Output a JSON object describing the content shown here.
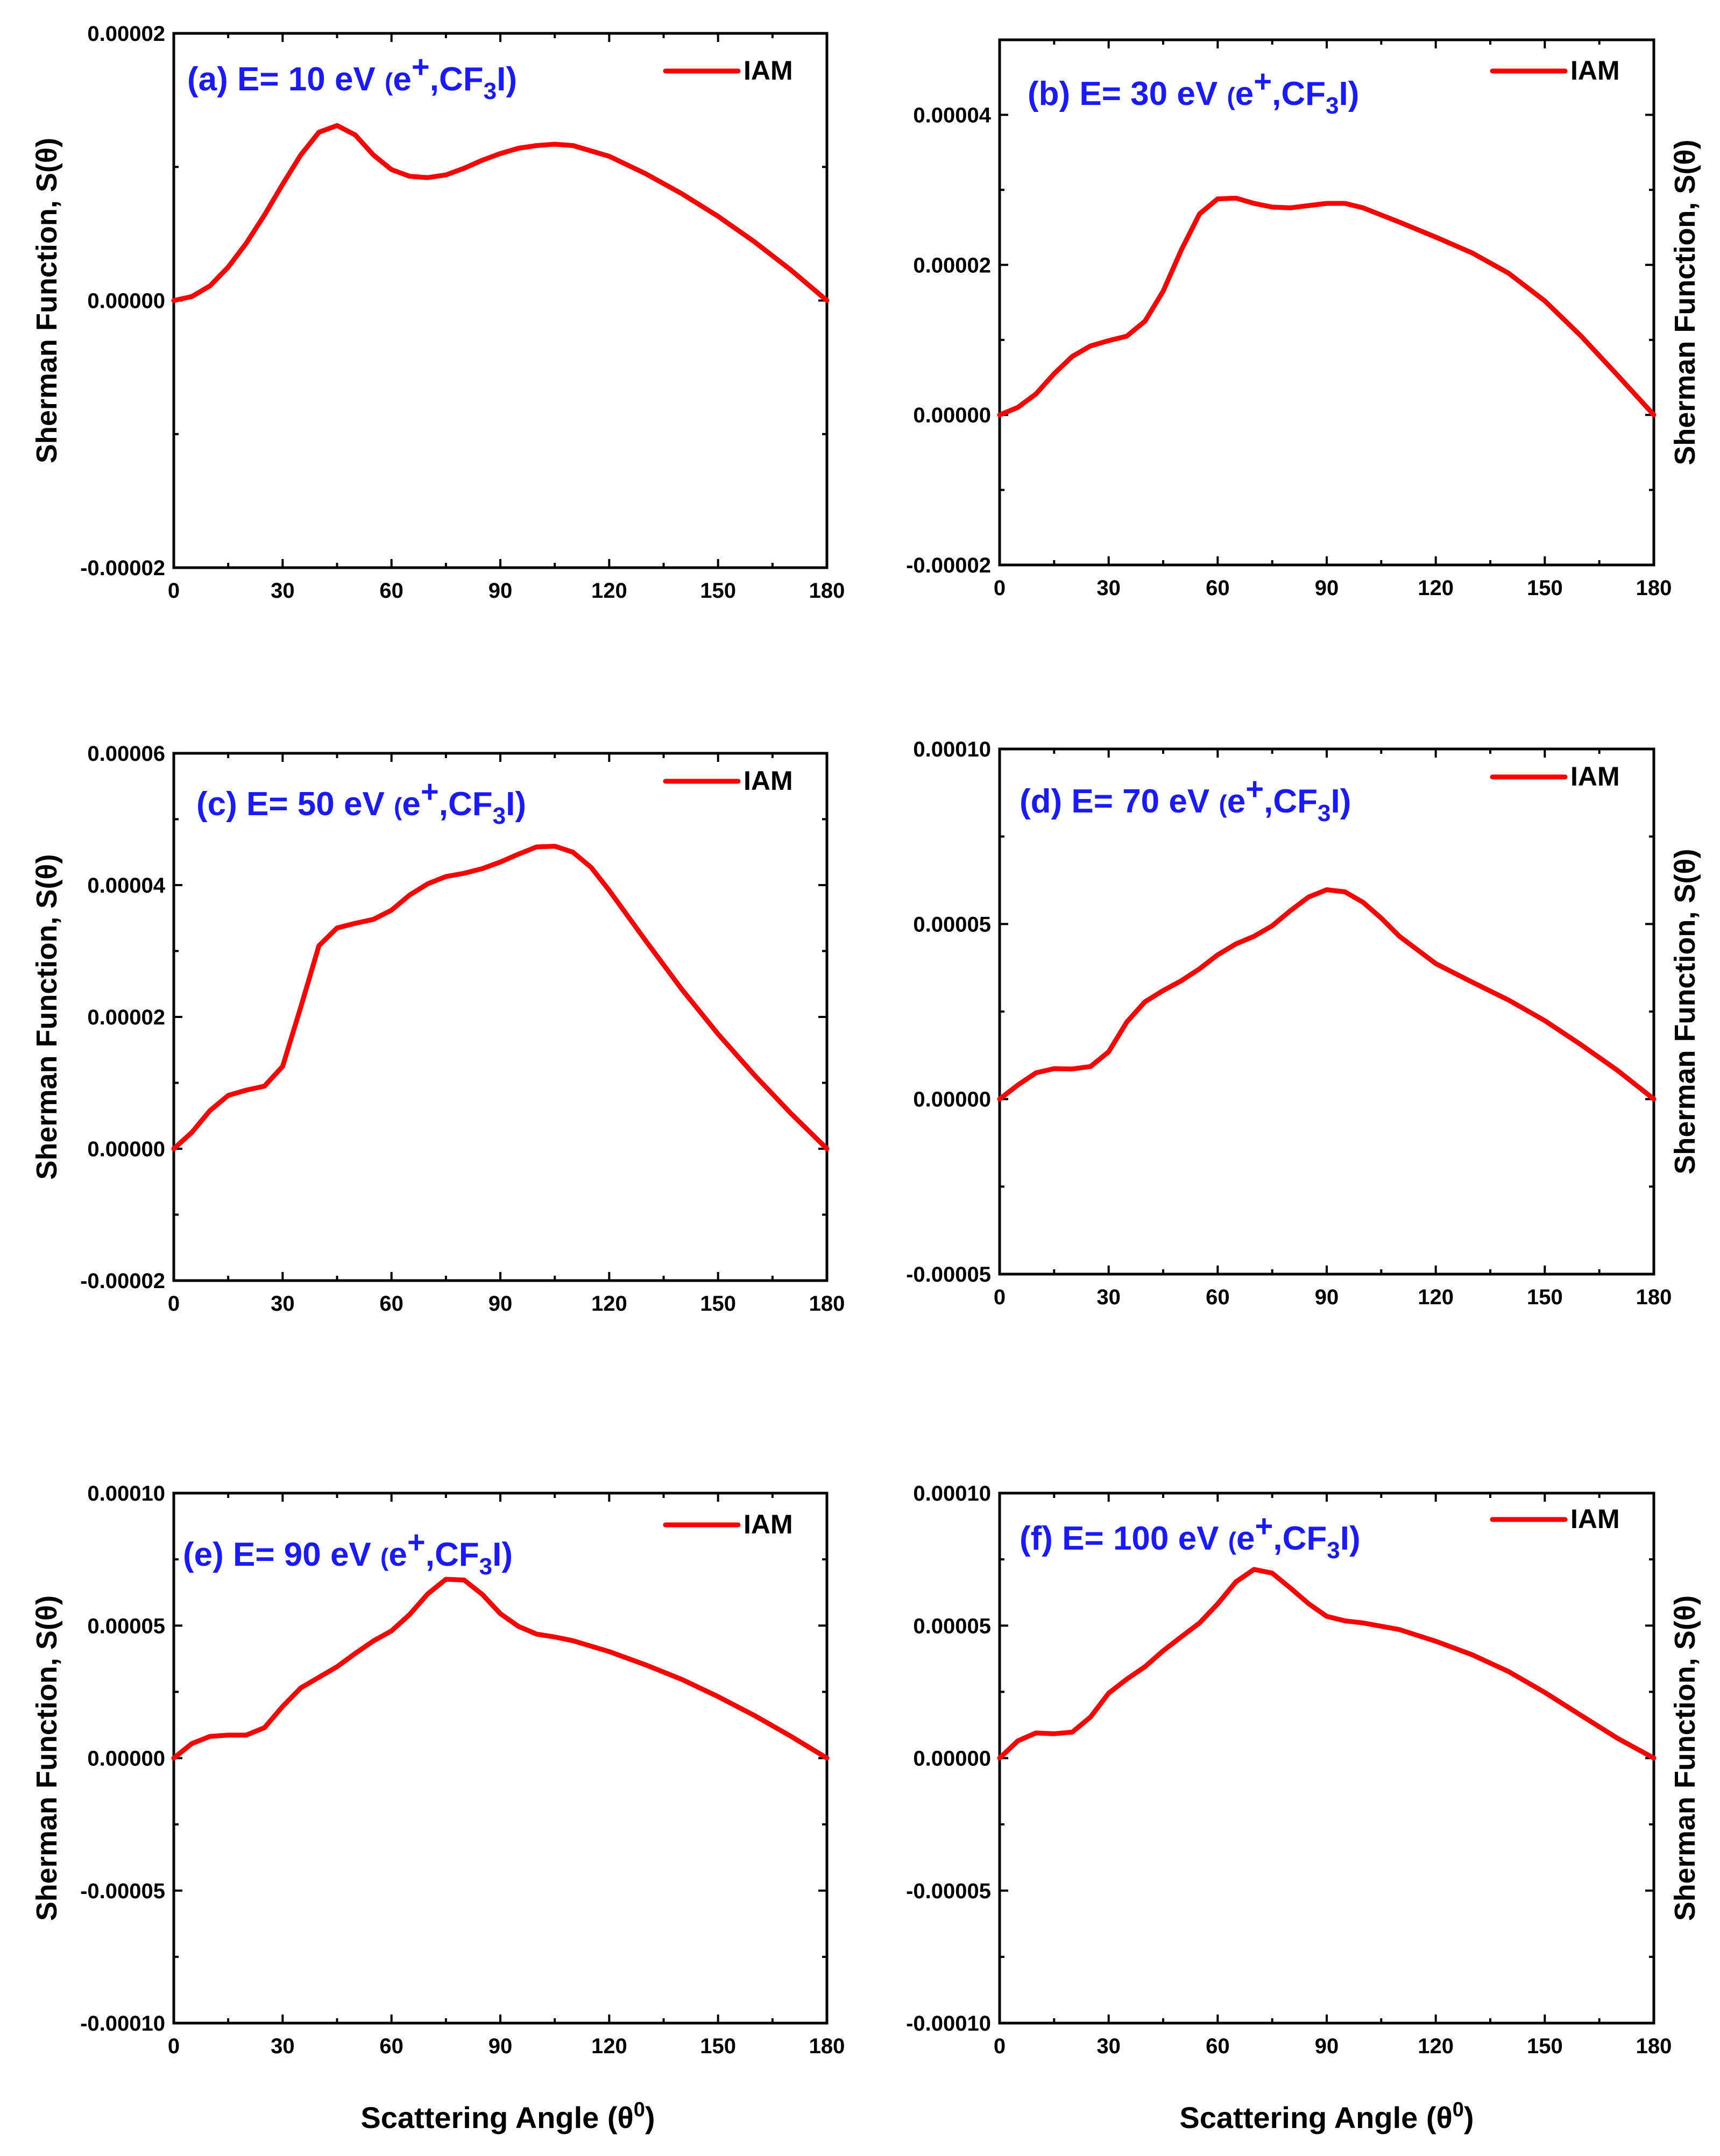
{
  "figure": {
    "xlabel_text": "Scattering Angle (θ",
    "xlabel_sup": "0",
    "xlabel_close": ")",
    "ylabel": "Sherman Function, S(θ)"
  },
  "chart_data": [
    {
      "type": "line",
      "panel": "a",
      "title": "(a) E= 10 eV (e+,CF3I)",
      "title_label": "(a) E= 10 eV ",
      "title_paren": "(",
      "title_e": "e",
      "title_sup": "+",
      "title_mid": ",CF",
      "title_sub": "3",
      "title_end": "I)",
      "legend": "IAM",
      "xlabel": "Scattering Angle (θ0)",
      "ylabel": "Sherman Function, S(θ)",
      "xlim": [
        0,
        180
      ],
      "ylim": [
        -2e-05,
        2e-05
      ],
      "xticks": [
        0,
        30,
        60,
        90,
        120,
        150,
        180
      ],
      "xtick_labels": [
        "0",
        "30",
        "60",
        "90",
        "120",
        "150",
        "180"
      ],
      "yticks": [
        -2e-05,
        0,
        2e-05
      ],
      "ytick_labels": [
        "-0.00002",
        "0.00000",
        "0.00002"
      ],
      "series": [
        {
          "name": "IAM",
          "color": "#ff0000",
          "x": [
            0,
            5,
            10,
            15,
            20,
            25,
            30,
            35,
            40,
            45,
            50,
            55,
            60,
            65,
            70,
            75,
            80,
            85,
            90,
            95,
            100,
            105,
            110,
            120,
            130,
            140,
            150,
            160,
            170,
            180
          ],
          "y": [
            0.0,
            3e-07,
            1.1e-06,
            2.5e-06,
            4.3e-06,
            6.4e-06,
            8.7e-06,
            1.09e-05,
            1.26e-05,
            1.31e-05,
            1.24e-05,
            1.09e-05,
            9.8e-06,
            9.3e-06,
            9.2e-06,
            9.4e-06,
            9.9e-06,
            1.05e-05,
            1.1e-05,
            1.14e-05,
            1.16e-05,
            1.17e-05,
            1.16e-05,
            1.08e-05,
            9.5e-06,
            8e-06,
            6.3e-06,
            4.4e-06,
            2.3e-06,
            0.0
          ]
        }
      ]
    },
    {
      "type": "line",
      "panel": "b",
      "title": "(b) E= 30 eV (e+,CF3I)",
      "title_label": "(b) E= 30 eV ",
      "title_paren": "(",
      "title_e": "e",
      "title_sup": "+",
      "title_mid": ",CF",
      "title_sub": "3",
      "title_end": "I)",
      "legend": "IAM",
      "xlabel": "Scattering Angle (θ0)",
      "ylabel": "Sherman Function, S(θ)",
      "xlim": [
        0,
        180
      ],
      "ylim": [
        -2e-05,
        5e-05
      ],
      "xticks": [
        0,
        30,
        60,
        90,
        120,
        150,
        180
      ],
      "xtick_labels": [
        "0",
        "30",
        "60",
        "90",
        "120",
        "150",
        "180"
      ],
      "yticks": [
        -2e-05,
        0,
        2e-05,
        4e-05
      ],
      "ytick_labels": [
        "-0.00002",
        "0.00000",
        "0.00002",
        "0.00004"
      ],
      "series": [
        {
          "name": "IAM",
          "color": "#ff0000",
          "x": [
            0,
            5,
            10,
            15,
            20,
            25,
            30,
            35,
            40,
            45,
            50,
            55,
            60,
            65,
            70,
            75,
            80,
            85,
            90,
            95,
            100,
            110,
            120,
            130,
            140,
            150,
            160,
            170,
            180
          ],
          "y": [
            0.0,
            1e-06,
            2.8e-06,
            5.5e-06,
            7.8e-06,
            9.2e-06,
            9.9e-06,
            1.05e-05,
            1.25e-05,
            1.65e-05,
            2.2e-05,
            2.68e-05,
            2.88e-05,
            2.89e-05,
            2.82e-05,
            2.77e-05,
            2.76e-05,
            2.79e-05,
            2.82e-05,
            2.82e-05,
            2.76e-05,
            2.57e-05,
            2.37e-05,
            2.16e-05,
            1.89e-05,
            1.52e-05,
            1.05e-05,
            5.3e-06,
            0.0
          ]
        }
      ]
    },
    {
      "type": "line",
      "panel": "c",
      "title": "(c) E= 50 eV (e+,CF3I)",
      "title_label": "(c) E= 50 eV ",
      "title_paren": "(",
      "title_e": "e",
      "title_sup": "+",
      "title_mid": ",CF",
      "title_sub": "3",
      "title_end": "I)",
      "legend": "IAM",
      "xlabel": "Scattering Angle (θ0)",
      "ylabel": "Sherman Function, S(θ)",
      "xlim": [
        0,
        180
      ],
      "ylim": [
        -2e-05,
        6e-05
      ],
      "xticks": [
        0,
        30,
        60,
        90,
        120,
        150,
        180
      ],
      "xtick_labels": [
        "0",
        "30",
        "60",
        "90",
        "120",
        "150",
        "180"
      ],
      "yticks": [
        -2e-05,
        0,
        2e-05,
        4e-05,
        6e-05
      ],
      "ytick_labels": [
        "-0.00002",
        "0.00000",
        "0.00002",
        "0.00004",
        "0.00006"
      ],
      "series": [
        {
          "name": "IAM",
          "color": "#ff0000",
          "x": [
            0,
            5,
            10,
            15,
            20,
            25,
            30,
            35,
            40,
            45,
            50,
            55,
            60,
            65,
            70,
            75,
            80,
            85,
            90,
            95,
            100,
            105,
            110,
            115,
            120,
            130,
            140,
            150,
            160,
            170,
            180
          ],
          "y": [
            0.0,
            2.5e-06,
            5.8e-06,
            8.1e-06,
            8.9e-06,
            9.5e-06,
            1.25e-05,
            2.15e-05,
            3.08e-05,
            3.35e-05,
            3.42e-05,
            3.48e-05,
            3.62e-05,
            3.85e-05,
            4.02e-05,
            4.13e-05,
            4.18e-05,
            4.25e-05,
            4.35e-05,
            4.47e-05,
            4.58e-05,
            4.59e-05,
            4.5e-05,
            4.27e-05,
            3.92e-05,
            3.16e-05,
            2.42e-05,
            1.74e-05,
            1.12e-05,
            5.4e-06,
            0.0
          ]
        }
      ]
    },
    {
      "type": "line",
      "panel": "d",
      "title": "(d) E= 70 eV (e+,CF3I)",
      "title_label": "(d) E= 70 eV ",
      "title_paren": "(",
      "title_e": "e",
      "title_sup": "+",
      "title_mid": ",CF",
      "title_sub": "3",
      "title_end": "I)",
      "legend": "IAM",
      "xlabel": "Scattering Angle (θ0)",
      "ylabel": "Sherman Function, S(θ)",
      "xlim": [
        0,
        180
      ],
      "ylim": [
        -5e-05,
        0.0001
      ],
      "xticks": [
        0,
        30,
        60,
        90,
        120,
        150,
        180
      ],
      "xtick_labels": [
        "0",
        "30",
        "60",
        "90",
        "120",
        "150",
        "180"
      ],
      "yticks": [
        -5e-05,
        0,
        5e-05,
        0.0001
      ],
      "ytick_labels": [
        "-0.00005",
        "0.00000",
        "0.00005",
        "0.00010"
      ],
      "series": [
        {
          "name": "IAM",
          "color": "#ff0000",
          "x": [
            0,
            5,
            10,
            15,
            20,
            25,
            30,
            35,
            40,
            45,
            50,
            55,
            60,
            65,
            70,
            75,
            80,
            85,
            90,
            95,
            100,
            105,
            110,
            120,
            130,
            140,
            150,
            160,
            170,
            180
          ],
          "y": [
            0.0,
            4e-06,
            7.5e-06,
            8.7e-06,
            8.6e-06,
            9.3e-06,
            1.35e-05,
            2.2e-05,
            2.78e-05,
            3.1e-05,
            3.38e-05,
            3.72e-05,
            4.12e-05,
            4.43e-05,
            4.65e-05,
            4.95e-05,
            5.38e-05,
            5.77e-05,
            5.98e-05,
            5.92e-05,
            5.62e-05,
            5.17e-05,
            4.65e-05,
            3.87e-05,
            3.34e-05,
            2.83e-05,
            2.24e-05,
            1.55e-05,
            8.2e-06,
            0.0
          ]
        }
      ]
    },
    {
      "type": "line",
      "panel": "e",
      "title": "(e) E= 90 eV (e+,CF3I)",
      "title_label": "(e) E= 90 eV ",
      "title_paren": "(",
      "title_e": "e",
      "title_sup": "+",
      "title_mid": ",CF",
      "title_sub": "3",
      "title_end": "I)",
      "legend": "IAM",
      "xlabel": "Scattering Angle (θ0)",
      "ylabel": "Sherman Function, S(θ)",
      "xlim": [
        0,
        180
      ],
      "ylim": [
        -0.0001,
        0.0001
      ],
      "xticks": [
        0,
        30,
        60,
        90,
        120,
        150,
        180
      ],
      "xtick_labels": [
        "0",
        "30",
        "60",
        "90",
        "120",
        "150",
        "180"
      ],
      "yticks": [
        -0.0001,
        -5e-05,
        0,
        5e-05,
        0.0001
      ],
      "ytick_labels": [
        "-0.00010",
        "-0.00005",
        "0.00000",
        "0.00005",
        "0.00010"
      ],
      "series": [
        {
          "name": "IAM",
          "color": "#ff0000",
          "x": [
            0,
            5,
            10,
            15,
            20,
            25,
            30,
            35,
            40,
            45,
            50,
            55,
            60,
            65,
            70,
            75,
            80,
            85,
            90,
            95,
            100,
            105,
            110,
            120,
            130,
            140,
            150,
            160,
            170,
            180
          ],
          "y": [
            0.0,
            5.5e-06,
            8.2e-06,
            8.7e-06,
            8.7e-06,
            1.15e-05,
            1.95e-05,
            2.65e-05,
            3.05e-05,
            3.45e-05,
            3.95e-05,
            4.42e-05,
            4.8e-05,
            5.42e-05,
            6.2e-05,
            6.75e-05,
            6.72e-05,
            6.18e-05,
            5.45e-05,
            4.97e-05,
            4.68e-05,
            4.57e-05,
            4.43e-05,
            4.02e-05,
            3.52e-05,
            2.97e-05,
            2.32e-05,
            1.61e-05,
            8.3e-06,
            0.0
          ]
        }
      ]
    },
    {
      "type": "line",
      "panel": "f",
      "title": "(f) E= 100 eV (e+,CF3I)",
      "title_label": "(f) E= 100 eV ",
      "title_paren": "(",
      "title_e": "e",
      "title_sup": "+",
      "title_mid": ",CF",
      "title_sub": "3",
      "title_end": "I)",
      "legend": "IAM",
      "xlabel": "Scattering Angle (θ0)",
      "ylabel": "Sherman Function, S(θ)",
      "xlim": [
        0,
        180
      ],
      "ylim": [
        -0.0001,
        0.0001
      ],
      "xticks": [
        0,
        30,
        60,
        90,
        120,
        150,
        180
      ],
      "xtick_labels": [
        "0",
        "30",
        "60",
        "90",
        "120",
        "150",
        "180"
      ],
      "yticks": [
        -0.0001,
        -5e-05,
        0,
        5e-05,
        0.0001
      ],
      "ytick_labels": [
        "-0.00010",
        "-0.00005",
        "0.00000",
        "0.00005",
        "0.00010"
      ],
      "series": [
        {
          "name": "IAM",
          "color": "#ff0000",
          "x": [
            0,
            5,
            10,
            15,
            20,
            25,
            30,
            35,
            40,
            45,
            50,
            55,
            60,
            65,
            70,
            75,
            80,
            85,
            90,
            95,
            100,
            110,
            120,
            130,
            140,
            150,
            160,
            170,
            180
          ],
          "y": [
            0.0,
            6.5e-06,
            9.5e-06,
            9.2e-06,
            9.8e-06,
            1.55e-05,
            2.45e-05,
            2.98e-05,
            3.45e-05,
            4.05e-05,
            4.58e-05,
            5.1e-05,
            5.82e-05,
            6.65e-05,
            7.12e-05,
            6.98e-05,
            6.42e-05,
            5.83e-05,
            5.35e-05,
            5.18e-05,
            5.1e-05,
            4.85e-05,
            4.41e-05,
            3.9e-05,
            3.27e-05,
            2.48e-05,
            1.61e-05,
            7.5e-06,
            0.0
          ]
        }
      ]
    }
  ]
}
